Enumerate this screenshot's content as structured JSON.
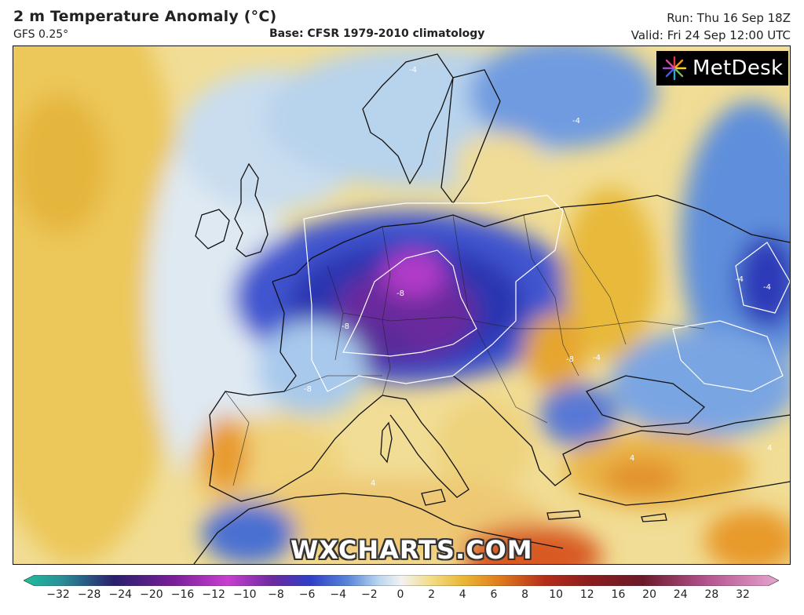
{
  "header": {
    "title": "2 m Temperature Anomaly (°C)",
    "model": "GFS 0.25°",
    "base": "Base: CFSR 1979-2010 climatology",
    "run": "Run: Thu 16 Sep 18Z",
    "valid": "Valid: Fri 24 Sep 12:00 UTC"
  },
  "logo": {
    "text": "MetDesk",
    "icon": "metdesk-starburst-icon"
  },
  "watermark": {
    "text": "WXCHARTS.COM"
  },
  "contour_labels": [
    "-8",
    "-8",
    "-8",
    "-8",
    "-4",
    "-4",
    "-4",
    "-4",
    "-4",
    "4",
    "4",
    "4"
  ],
  "colorbar": {
    "ticks": [
      "−32",
      "−28",
      "−24",
      "−20",
      "−16",
      "−12",
      "−10",
      "−8",
      "−6",
      "−4",
      "−2",
      "0",
      "2",
      "4",
      "6",
      "8",
      "10",
      "12",
      "16",
      "20",
      "24",
      "28",
      "32"
    ],
    "colors": {
      "neg_extreme": "#1fbf9a",
      "neg_deep": "#2a1f6b",
      "neg_purple": "#7a1f9a",
      "neg_magenta": "#c83fcf",
      "neg_blue": "#2f3fc8",
      "neg_mid": "#5a86d9",
      "neg_light": "#b9d6ee",
      "zero": "#f2f2f2",
      "pos_light": "#f3dc86",
      "pos_yellow": "#e9b936",
      "pos_orange": "#e07c1c",
      "pos_red": "#b52d1a",
      "pos_dark": "#6b1a2a",
      "pos_pink": "#e7a4cf"
    }
  }
}
